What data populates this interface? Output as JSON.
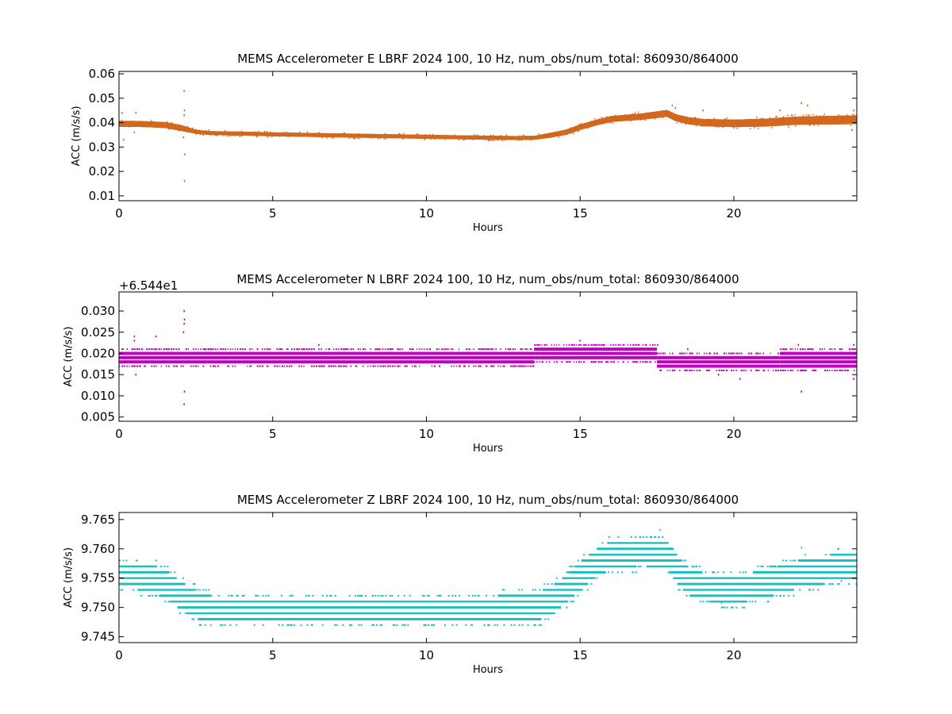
{
  "colors": {
    "east": "#D2691E",
    "north": "#BF00BF",
    "vertical": "#19BFBF",
    "axes": "#000000",
    "background": "#FFFFFF"
  },
  "chart_data": [
    {
      "type": "scatter",
      "title": "MEMS Accelerometer E LBRF 2024 100, 10 Hz, num_obs/num_total: 860930/864000",
      "xlabel": "Hours",
      "ylabel": "ACC (m/s/s)",
      "xlim": [
        0,
        24
      ],
      "ylim": [
        0.008,
        0.061
      ],
      "x_ticks": [
        0,
        5,
        10,
        15,
        20
      ],
      "y_ticks": [
        0.01,
        0.02,
        0.03,
        0.04,
        0.05,
        0.06
      ],
      "y_tick_labels": [
        "0.01",
        "0.02",
        "0.03",
        "0.04",
        "0.05",
        "0.06"
      ],
      "offset_text": "",
      "grid": false,
      "color": "#D2691E",
      "trend": {
        "x": [
          0,
          0.5,
          1.0,
          1.5,
          2.0,
          2.5,
          3,
          4,
          5,
          6,
          7,
          8,
          9,
          10,
          11,
          12,
          13,
          13.5,
          14,
          14.5,
          15,
          15.5,
          16,
          16.5,
          17,
          17.5,
          17.8,
          18.1,
          18.5,
          19,
          20,
          21,
          22,
          23,
          24
        ],
        "y": [
          0.0395,
          0.0395,
          0.0393,
          0.039,
          0.0378,
          0.0362,
          0.0357,
          0.0355,
          0.0352,
          0.035,
          0.0348,
          0.0346,
          0.0344,
          0.0342,
          0.034,
          0.0338,
          0.0337,
          0.0338,
          0.0348,
          0.036,
          0.0382,
          0.04,
          0.0415,
          0.042,
          0.0425,
          0.0433,
          0.0438,
          0.042,
          0.0408,
          0.04,
          0.0397,
          0.04,
          0.0408,
          0.041,
          0.0412
        ]
      },
      "spread": {
        "x": [
          0,
          2,
          2.5,
          13.5,
          14,
          18,
          24
        ],
        "y": [
          0.0012,
          0.0012,
          0.0008,
          0.0008,
          0.001,
          0.0014,
          0.0018
        ]
      },
      "outliers": [
        [
          0.1,
          0.044
        ],
        [
          0.15,
          0.033
        ],
        [
          0.5,
          0.036
        ],
        [
          0.55,
          0.044
        ],
        [
          2.12,
          0.053
        ],
        [
          2.13,
          0.045
        ],
        [
          2.12,
          0.043
        ],
        [
          2.13,
          0.016
        ],
        [
          2.14,
          0.027
        ],
        [
          2.1,
          0.034
        ],
        [
          18.0,
          0.047
        ],
        [
          18.1,
          0.046
        ],
        [
          19.0,
          0.045
        ],
        [
          21.5,
          0.045
        ],
        [
          22.2,
          0.048
        ],
        [
          22.4,
          0.047
        ],
        [
          23.9,
          0.045
        ],
        [
          23.85,
          0.037
        ]
      ]
    },
    {
      "type": "scatter",
      "title": "MEMS Accelerometer N LBRF 2024 100, 10 Hz, num_obs/num_total: 860930/864000",
      "xlabel": "Hours",
      "ylabel": "ACC (m/s/s)",
      "xlim": [
        0,
        24
      ],
      "ylim": [
        0.004,
        0.0345
      ],
      "x_ticks": [
        0,
        5,
        10,
        15,
        20
      ],
      "y_ticks": [
        0.005,
        0.01,
        0.015,
        0.02,
        0.025,
        0.03
      ],
      "y_tick_labels": [
        "0.005",
        "0.010",
        "0.015",
        "0.020",
        "0.025",
        "0.030"
      ],
      "offset_text": "+6.544e1",
      "grid": false,
      "color": "#BF00BF",
      "level_step": 0.001,
      "bands": [
        {
          "x_range": [
            0,
            13.5
          ],
          "levels": [
            0.017,
            0.018,
            0.019,
            0.02,
            0.021
          ]
        },
        {
          "x_range": [
            13.5,
            17.5
          ],
          "levels": [
            0.018,
            0.019,
            0.02,
            0.021,
            0.022
          ]
        },
        {
          "x_range": [
            17.5,
            21.5
          ],
          "levels": [
            0.016,
            0.017,
            0.018,
            0.019,
            0.02
          ]
        },
        {
          "x_range": [
            21.5,
            24
          ],
          "levels": [
            0.016,
            0.017,
            0.018,
            0.019,
            0.02,
            0.021
          ]
        }
      ],
      "outliers": [
        [
          0.5,
          0.024
        ],
        [
          0.5,
          0.023
        ],
        [
          0.55,
          0.015
        ],
        [
          1.2,
          0.024
        ],
        [
          2.12,
          0.03
        ],
        [
          2.13,
          0.028
        ],
        [
          2.12,
          0.027
        ],
        [
          2.13,
          0.011
        ],
        [
          2.12,
          0.008
        ],
        [
          2.1,
          0.025
        ],
        [
          6.5,
          0.022
        ],
        [
          15.0,
          0.023
        ],
        [
          18.5,
          0.021
        ],
        [
          19.5,
          0.015
        ],
        [
          20.2,
          0.014
        ],
        [
          22.1,
          0.022
        ],
        [
          22.2,
          0.011
        ],
        [
          23.9,
          0.022
        ],
        [
          23.9,
          0.014
        ]
      ]
    },
    {
      "type": "scatter",
      "title": "MEMS Accelerometer Z LBRF 2024 100, 10 Hz, num_obs/num_total: 860930/864000",
      "xlabel": "Hours",
      "ylabel": "ACC (m/s/s)",
      "xlim": [
        0,
        24
      ],
      "ylim": [
        9.744,
        9.7662
      ],
      "x_ticks": [
        0,
        5,
        10,
        15,
        20
      ],
      "y_ticks": [
        9.745,
        9.75,
        9.755,
        9.76,
        9.765
      ],
      "y_tick_labels": [
        "9.745",
        "9.750",
        "9.755",
        "9.760",
        "9.765"
      ],
      "offset_text": "",
      "grid": false,
      "color": "#19BFBF",
      "level_step": 0.001,
      "trend": {
        "x": [
          0,
          0.5,
          1.0,
          1.5,
          2.0,
          2.5,
          3.0,
          4,
          8,
          12,
          13.5,
          14.0,
          14.5,
          15.0,
          15.5,
          16.0,
          17.0,
          17.8,
          18.2,
          18.5,
          19.0,
          20.0,
          21.0,
          22.0,
          23.0,
          24.0
        ],
        "y": [
          9.7555,
          9.7555,
          9.755,
          9.754,
          9.752,
          9.7505,
          9.7495,
          9.7495,
          9.7495,
          9.7495,
          9.75,
          9.751,
          9.753,
          9.7555,
          9.7575,
          9.759,
          9.7595,
          9.759,
          9.756,
          9.7545,
          9.7535,
          9.753,
          9.754,
          9.7555,
          9.7565,
          9.757
        ]
      },
      "band_halfwidth": 0.0024,
      "outliers": [
        [
          17.6,
          9.7632
        ],
        [
          17.55,
          9.762
        ],
        [
          22.2,
          9.7602
        ],
        [
          23.5,
          9.7545
        ],
        [
          19.6,
          9.7508
        ],
        [
          20.3,
          9.751
        ]
      ]
    }
  ]
}
